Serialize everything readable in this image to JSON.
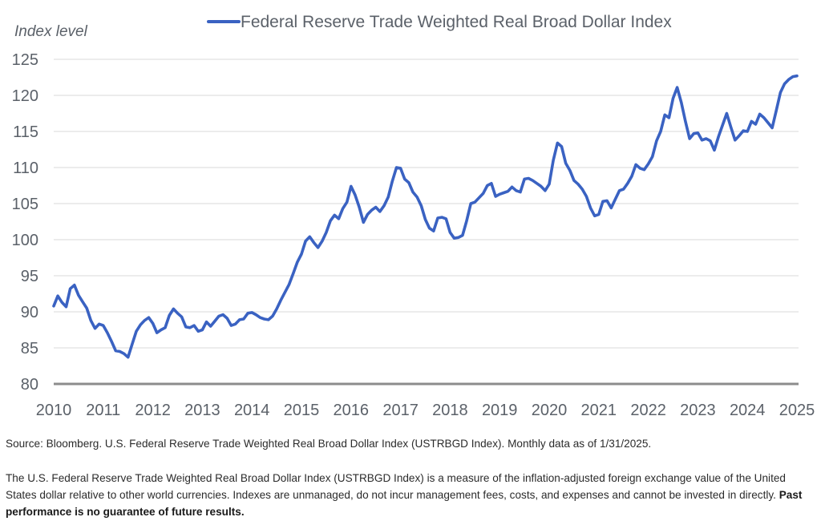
{
  "chart_data": {
    "type": "line",
    "title": "",
    "legend": [
      "Federal Reserve Trade Weighted Real Broad Dollar Index"
    ],
    "legend_position": "top-center",
    "xlabel": "",
    "ylabel": "Index level",
    "ylim": [
      80,
      125
    ],
    "yticks": [
      80,
      85,
      90,
      95,
      100,
      105,
      110,
      115,
      120,
      125
    ],
    "xlim": [
      2010,
      2025
    ],
    "xticks": [
      "2010",
      "2011",
      "2012",
      "2013",
      "2014",
      "2015",
      "2016",
      "2017",
      "2018",
      "2019",
      "2020",
      "2021",
      "2022",
      "2023",
      "2024",
      "2025"
    ],
    "grid": "horizontal",
    "frequency": "monthly",
    "start": "2010-01",
    "end": "2025-01",
    "series": [
      {
        "name": "Federal Reserve Trade Weighted Real Broad Dollar Index",
        "color": "#3a62c2",
        "values": [
          90.8,
          92.2,
          91.3,
          90.7,
          93.2,
          93.7,
          92.3,
          91.4,
          90.5,
          88.8,
          87.7,
          88.3,
          88.1,
          87.1,
          85.9,
          84.6,
          84.5,
          84.2,
          83.7,
          85.5,
          87.3,
          88.2,
          88.8,
          89.2,
          88.4,
          87.1,
          87.5,
          87.8,
          89.5,
          90.4,
          89.8,
          89.3,
          87.9,
          87.8,
          88.1,
          87.3,
          87.5,
          88.6,
          88.0,
          88.7,
          89.4,
          89.6,
          89.1,
          88.1,
          88.3,
          88.9,
          89.0,
          89.8,
          89.9,
          89.6,
          89.2,
          89.0,
          88.9,
          89.4,
          90.4,
          91.6,
          92.7,
          93.8,
          95.3,
          96.9,
          98.0,
          99.8,
          100.4,
          99.6,
          98.9,
          99.8,
          101.0,
          102.6,
          103.4,
          102.9,
          104.3,
          105.2,
          107.4,
          106.2,
          104.5,
          102.4,
          103.5,
          104.1,
          104.5,
          103.9,
          104.7,
          105.9,
          108.1,
          110.0,
          109.9,
          108.4,
          107.9,
          106.6,
          105.9,
          104.7,
          102.8,
          101.6,
          101.2,
          103.0,
          103.1,
          102.9,
          101.0,
          100.2,
          100.3,
          100.6,
          102.6,
          105.0,
          105.2,
          105.8,
          106.4,
          107.5,
          107.8,
          106.0,
          106.3,
          106.5,
          106.7,
          107.3,
          106.8,
          106.6,
          108.4,
          108.5,
          108.2,
          107.8,
          107.4,
          106.8,
          107.7,
          111.0,
          113.4,
          112.9,
          110.6,
          109.6,
          108.2,
          107.7,
          107.0,
          106.0,
          104.4,
          103.3,
          103.5,
          105.3,
          105.4,
          104.4,
          105.6,
          106.8,
          107.0,
          107.8,
          108.8,
          110.4,
          109.9,
          109.7,
          110.5,
          111.5,
          113.7,
          115.0,
          117.3,
          116.9,
          119.6,
          121.1,
          119.0,
          116.4,
          114.0,
          114.7,
          114.8,
          113.8,
          114.0,
          113.7,
          112.4,
          114.3,
          115.9,
          117.5,
          115.6,
          113.8,
          114.4,
          115.1,
          115.0,
          116.4,
          116.0,
          117.4,
          116.9,
          116.2,
          115.5,
          117.9,
          120.4,
          121.6,
          122.2,
          122.6,
          122.7
        ]
      }
    ]
  },
  "footer": {
    "source": "Source: Bloomberg. U.S. Federal Reserve Trade Weighted Real Broad Dollar Index (USTRBGD Index). Monthly data as of 1/31/2025.",
    "disclaimer": "The U.S. Federal Reserve Trade Weighted Real Broad Dollar Index (USTRBGD Index) is a measure of the inflation-adjusted foreign exchange value of the United States dollar relative to other world currencies. Indexes are unmanaged, do not incur management fees, costs, and expenses and cannot be invested in directly.",
    "disclaimer_bold": "Past performance is no guarantee of future results."
  },
  "colors": {
    "line": "#3a62c2",
    "grid": "#e6e6e6",
    "axis": "#8c8c8c",
    "text": "#5b6169"
  }
}
